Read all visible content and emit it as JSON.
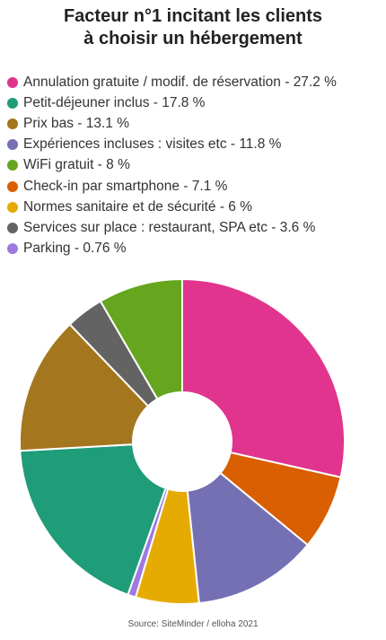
{
  "title_line1": "Facteur n°1 incitant les clients",
  "title_line2": "à choisir un hébergement",
  "source": "Source: SiteMinder / elloha 2021",
  "legend": [
    {
      "label": "Annulation gratuite / modif. de réservation - 27.2 %",
      "color": "#e0348e"
    },
    {
      "label": "Petit-déjeuner inclus - 17.8 %",
      "color": "#1f9c78"
    },
    {
      "label": "Prix bas - 13.1 %",
      "color": "#a4761d"
    },
    {
      "label": "Expériences incluses : visites etc - 11.8 %",
      "color": "#7570b3"
    },
    {
      "label": "WiFi gratuit - 8 %",
      "color": "#66a61e"
    },
    {
      "label": "Check-in par smartphone - 7.1 %",
      "color": "#d95f02"
    },
    {
      "label": "Normes sanitaire et de sécurité - 6 %",
      "color": "#e6ab02"
    },
    {
      "label": "Services sur place : restaurant, SPA etc - 3.6 %",
      "color": "#636363"
    },
    {
      "label": "Parking - 0.76 %",
      "color": "#9e79e0"
    }
  ],
  "chart_data": {
    "type": "pie",
    "donut": true,
    "title": "Facteur n°1 incitant les clients à choisir un hébergement",
    "legend_position": "top",
    "slice_order": [
      "Annulation gratuite / modif. de réservation",
      "Check-in par smartphone",
      "Expériences incluses : visites etc",
      "Normes sanitaire et de sécurité",
      "Parking",
      "Petit-déjeuner inclus",
      "Prix bas",
      "Services sur place : restaurant, SPA etc",
      "WiFi gratuit"
    ],
    "slices": [
      {
        "label": "Annulation gratuite / modif. de réservation",
        "value": 27.2,
        "color": "#e0348e"
      },
      {
        "label": "Check-in par smartphone",
        "value": 7.1,
        "color": "#d95f02"
      },
      {
        "label": "Expériences incluses : visites etc",
        "value": 11.8,
        "color": "#7570b3"
      },
      {
        "label": "Normes sanitaire et de sécurité",
        "value": 6,
        "color": "#e6ab02"
      },
      {
        "label": "Parking",
        "value": 0.76,
        "color": "#9e79e0"
      },
      {
        "label": "Petit-déjeuner inclus",
        "value": 17.8,
        "color": "#1f9c78"
      },
      {
        "label": "Prix bas",
        "value": 13.1,
        "color": "#a4761d"
      },
      {
        "label": "Services sur place : restaurant, SPA etc",
        "value": 3.6,
        "color": "#636363"
      },
      {
        "label": "WiFi gratuit",
        "value": 8,
        "color": "#66a61e"
      }
    ]
  }
}
